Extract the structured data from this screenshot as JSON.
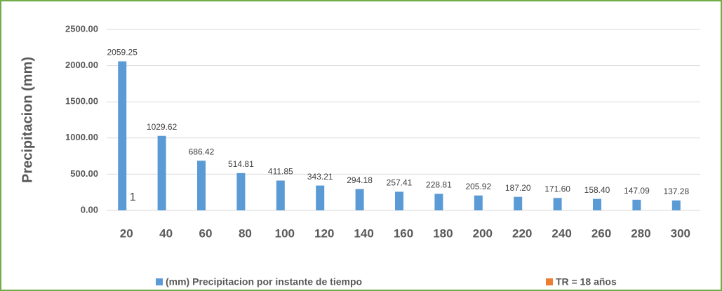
{
  "chart_data": {
    "type": "bar",
    "y_axis_label": "Precipitacion (mm)",
    "categories": [
      20,
      40,
      60,
      80,
      100,
      120,
      140,
      160,
      180,
      200,
      220,
      240,
      260,
      280,
      300
    ],
    "series": [
      {
        "name": "(mm) Precipitacion por instante de tiempo",
        "color": "#5b9bd5",
        "values": [
          2059.25,
          1029.62,
          686.42,
          514.81,
          411.85,
          343.21,
          294.18,
          257.41,
          228.81,
          205.92,
          187.2,
          171.6,
          158.4,
          147.09,
          137.28
        ],
        "value_labels": [
          "2059.25",
          "1029.62",
          "686.42",
          "514.81",
          "411.85",
          "343.21",
          "294.18",
          "257.41",
          "228.81",
          "205.92",
          "187.20",
          "171.60",
          "158.40",
          "147.09",
          "137.28"
        ]
      },
      {
        "name": "TR = 18 años",
        "color": "#ed7d31",
        "values": [
          1,
          null,
          null,
          null,
          null,
          null,
          null,
          null,
          null,
          null,
          null,
          null,
          null,
          null,
          null
        ]
      }
    ],
    "ylim": [
      0,
      2500
    ],
    "yticks": [
      {
        "value": 0,
        "label": "0.00"
      },
      {
        "value": 500,
        "label": "500.00"
      },
      {
        "value": 1000,
        "label": "1000.00"
      },
      {
        "value": 1500,
        "label": "1500.00"
      },
      {
        "value": 2000,
        "label": "2000.00"
      },
      {
        "value": 2500,
        "label": "2500.00"
      }
    ],
    "grid": true,
    "legend": "bottom"
  }
}
